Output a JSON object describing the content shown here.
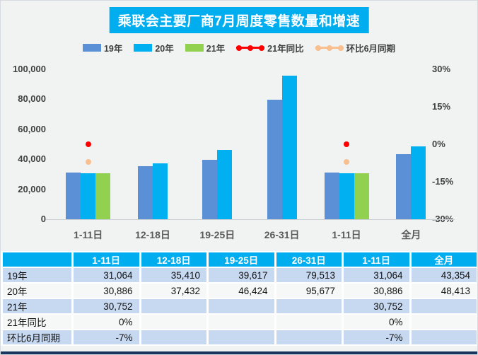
{
  "title": "乘联会主要厂商7月周度零售数量和增速",
  "colors": {
    "accent_blue": "#00AEEF",
    "bar_19": "#5B8FD6",
    "bar_20": "#00B0F0",
    "bar_21": "#92D050",
    "line_yoy": "#FF0000",
    "line_mom": "#F9BF8F",
    "table_row_blue": "#C7D9F1",
    "table_row_white": "#F6F7F7",
    "table_bottom_border": "#17375E",
    "background": "#F1F2F2"
  },
  "legend": {
    "items": [
      {
        "label": "19年",
        "type": "bar",
        "color": "#5B8FD6"
      },
      {
        "label": "20年",
        "type": "bar",
        "color": "#00B0F0"
      },
      {
        "label": "21年",
        "type": "bar",
        "color": "#92D050"
      },
      {
        "label": "21年同比",
        "type": "line",
        "color": "#FF0000"
      },
      {
        "label": "环比6月同期",
        "type": "line",
        "color": "#F9BF8F"
      }
    ]
  },
  "chart_data": {
    "type": "bar",
    "title": "乘联会主要厂商7月周度零售数量和增速",
    "categories": [
      "1-11日",
      "12-18日",
      "19-25日",
      "26-31日",
      "1-11日",
      "全月"
    ],
    "series": [
      {
        "name": "19年",
        "type": "bar",
        "axis": "left",
        "color": "#5B8FD6",
        "values": [
          31064,
          35410,
          39617,
          79513,
          31064,
          43354
        ]
      },
      {
        "name": "20年",
        "type": "bar",
        "axis": "left",
        "color": "#00B0F0",
        "values": [
          30886,
          37432,
          46424,
          95677,
          30886,
          48413
        ]
      },
      {
        "name": "21年",
        "type": "bar",
        "axis": "left",
        "color": "#92D050",
        "values": [
          30752,
          null,
          null,
          null,
          30752,
          null
        ]
      },
      {
        "name": "21年同比",
        "type": "point",
        "axis": "right",
        "color": "#FF0000",
        "values": [
          0,
          null,
          null,
          null,
          0,
          null
        ]
      },
      {
        "name": "环比6月同期",
        "type": "point",
        "axis": "right",
        "color": "#F9BF8F",
        "values": [
          -7,
          null,
          null,
          null,
          -7,
          null
        ]
      }
    ],
    "left_axis": {
      "min": 0,
      "max": 100000,
      "ticks": [
        {
          "v": 0,
          "label": "0"
        },
        {
          "v": 20000,
          "label": "20,000"
        },
        {
          "v": 40000,
          "label": "40,000"
        },
        {
          "v": 60000,
          "label": "60,000"
        },
        {
          "v": 80000,
          "label": "80,000"
        },
        {
          "v": 100000,
          "label": "100,000"
        }
      ]
    },
    "right_axis": {
      "min": -30,
      "max": 30,
      "ticks": [
        {
          "v": -30,
          "label": "-30%"
        },
        {
          "v": -15,
          "label": "-15%"
        },
        {
          "v": 0,
          "label": "0%"
        },
        {
          "v": 15,
          "label": "15%"
        },
        {
          "v": 30,
          "label": "30%"
        }
      ]
    },
    "grid": false,
    "legend_position": "top"
  },
  "table": {
    "header": [
      "",
      "1-11日",
      "12-18日",
      "19-25日",
      "26-31日",
      "1-11日",
      "全月"
    ],
    "rows": [
      {
        "label": "19年",
        "cells": [
          "31,064",
          "35,410",
          "39,617",
          "79,513",
          "31,064",
          "43,354"
        ]
      },
      {
        "label": "20年",
        "cells": [
          "30,886",
          "37,432",
          "46,424",
          "95,677",
          "30,886",
          "48,413"
        ]
      },
      {
        "label": "21年",
        "cells": [
          "30,752",
          "",
          "",
          "",
          "30,752",
          ""
        ]
      },
      {
        "label": "21年同比",
        "cells": [
          "0%",
          "",
          "",
          "",
          "0%",
          ""
        ]
      },
      {
        "label": "环比6月同期",
        "cells": [
          "-7%",
          "",
          "",
          "",
          "-7%",
          ""
        ]
      }
    ]
  }
}
